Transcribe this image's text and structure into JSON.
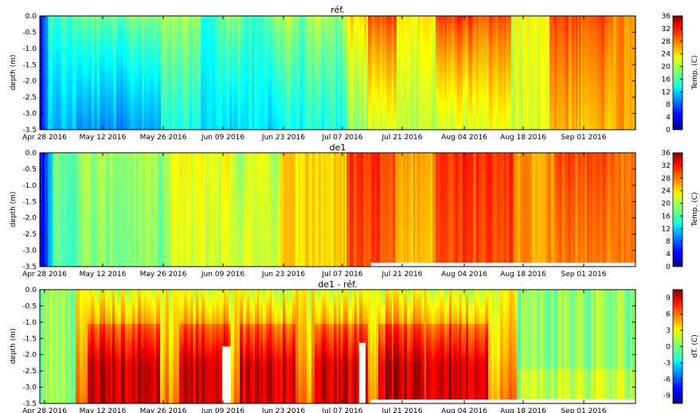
{
  "chart_data": [
    {
      "type": "heatmap",
      "title": "réf.",
      "ylabel": "depth (m)",
      "ylim": [
        -3.5,
        0.0
      ],
      "yticks": [
        "0.0",
        "-0.5",
        "-1.0",
        "-1.5",
        "-2.0",
        "-2.5",
        "-3.0",
        "-3.5"
      ],
      "xticks": [
        "Apr 28 2016",
        "May 12 2016",
        "May 26 2016",
        "Jun 09 2016",
        "Jun 23 2016",
        "Jul 07 2016",
        "Jul 21 2016",
        "Aug 04 2016",
        "Aug 18 2016",
        "Sep 01 2016"
      ],
      "xlim": [
        "2016-04-28",
        "2016-09-14"
      ],
      "colorbar": {
        "label": "Temp. (C)",
        "range": [
          0,
          36
        ],
        "ticks": [
          "36",
          "32",
          "28",
          "24",
          "20",
          "16",
          "12",
          "8",
          "4",
          "0"
        ],
        "colormap": "jet"
      },
      "description_series": [
        {
          "period": "2016-04-28 to 2016-05-01",
          "surface": 6,
          "bottom": 5
        },
        {
          "period": "2016-05-01 to 2016-05-12",
          "surface": 16,
          "bottom": 10
        },
        {
          "period": "2016-05-12 to 2016-06-23",
          "surface": 18,
          "bottom": 13
        },
        {
          "period": "2016-06-23 to 2016-07-10",
          "surface": 26,
          "bottom": 20
        },
        {
          "period": "2016-07-14 to 2016-08-10",
          "surface": 29,
          "bottom": 22
        },
        {
          "period": "2016-08-10 to 2016-09-14",
          "surface": 28,
          "bottom": 25
        }
      ]
    },
    {
      "type": "heatmap",
      "title": "de1",
      "ylabel": "depth (m)",
      "ylim": [
        -3.5,
        0.0
      ],
      "yticks": [
        "0.0",
        "-0.5",
        "-1.0",
        "-1.5",
        "-2.0",
        "-2.5",
        "-3.0",
        "-3.5"
      ],
      "xticks": [
        "Apr 28 2016",
        "May 12 2016",
        "May 26 2016",
        "Jun 09 2016",
        "Jun 23 2016",
        "Jul 07 2016",
        "Jul 21 2016",
        "Aug 04 2016",
        "Aug 18 2016",
        "Sep 01 2016"
      ],
      "xlim": [
        "2016-04-28",
        "2016-09-14"
      ],
      "colorbar": {
        "label": "Temp. (C)",
        "range": [
          0,
          36
        ],
        "ticks": [
          "36",
          "32",
          "28",
          "24",
          "20",
          "16",
          "12",
          "8",
          "4",
          "0"
        ],
        "colormap": "jet"
      }
    },
    {
      "type": "heatmap",
      "title": "de1 - réf.",
      "ylabel": "depth (m)",
      "ylim": [
        -3.5,
        0.0
      ],
      "yticks": [
        "0.0",
        "-0.5",
        "-1.0",
        "-1.5",
        "-2.0",
        "-2.5",
        "-3.0",
        "-3.5"
      ],
      "xticks": [
        "Apr 28 2016",
        "May 12 2016",
        "May 26 2016",
        "Jun 09 2016",
        "Jun 23 2016",
        "Jul 07 2016",
        "Jul 21 2016",
        "Aug 04 2016",
        "Aug 18 2016",
        "Sep 01 2016"
      ],
      "xlim": [
        "2016-04-28",
        "2016-09-14"
      ],
      "colorbar": {
        "label": "dT. (C)",
        "range": [
          -10.5,
          10.5
        ],
        "ticks": [
          "9",
          "6",
          "3",
          "0",
          "-3",
          "-6",
          "-9"
        ],
        "colormap": "jet"
      }
    }
  ]
}
